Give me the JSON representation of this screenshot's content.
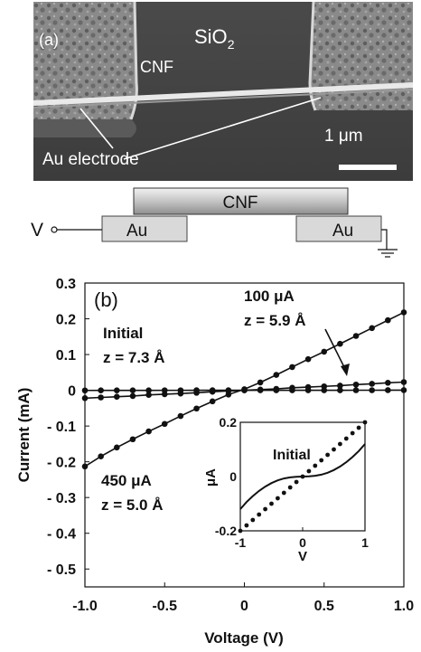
{
  "panel_a": {
    "label": "(a)",
    "sio2_text": "SiO",
    "sio2_sub": "2",
    "cnf_label": "CNF",
    "electrode_label": "Au electrode",
    "scale_label": "1 μm"
  },
  "schematic": {
    "cnf_label": "CNF",
    "left_electrode": "Au",
    "right_electrode": "Au",
    "voltage_label": "V"
  },
  "chart_data": [
    {
      "type": "line",
      "panel_label": "(b)",
      "xlabel": "Voltage (V)",
      "ylabel": "Current (mA)",
      "xlim": [
        -1.0,
        1.0
      ],
      "ylim": [
        -0.55,
        0.3
      ],
      "xticks": [
        "-1.0",
        "-0.5",
        "0",
        "0.5",
        "1.0"
      ],
      "yticks": [
        "0.3",
        "0.2",
        "0.1",
        "0",
        "- 0.1",
        "- 0.2",
        "- 0.3",
        "- 0.4",
        "- 0.5"
      ],
      "ytick_values": [
        0.3,
        0.2,
        0.1,
        0,
        -0.1,
        -0.2,
        -0.3,
        -0.4,
        -0.5
      ],
      "xtick_values": [
        -1.0,
        -0.5,
        0,
        0.5,
        1.0
      ],
      "annotations": [
        {
          "line1": "Initial",
          "line2": "z = 7.3 Å"
        },
        {
          "line1": "100 μA",
          "line2": "z = 5.9 Å"
        },
        {
          "line1": "450 μA",
          "line2": "z = 5.0 Å"
        }
      ],
      "series": [
        {
          "x": [
            -1.0,
            -0.9,
            -0.8,
            -0.7,
            -0.6,
            -0.5,
            -0.4,
            -0.3,
            -0.2,
            -0.1,
            0.0,
            0.1,
            0.2,
            0.3,
            0.4,
            0.5,
            0.6,
            0.7,
            0.8,
            0.9,
            1.0
          ],
          "y": [
            -0.213,
            -0.185,
            -0.16,
            -0.137,
            -0.115,
            -0.094,
            -0.072,
            -0.051,
            -0.031,
            -0.012,
            0.003,
            0.022,
            0.043,
            0.065,
            0.087,
            0.108,
            0.13,
            0.152,
            0.174,
            0.196,
            0.218
          ]
        },
        {
          "x": [
            -1.0,
            -0.9,
            -0.8,
            -0.7,
            -0.6,
            -0.5,
            -0.4,
            -0.3,
            -0.2,
            -0.1,
            0.0,
            0.1,
            0.2,
            0.3,
            0.4,
            0.5,
            0.6,
            0.7,
            0.8,
            0.9,
            1.0
          ],
          "y": [
            -0.022,
            -0.02,
            -0.018,
            -0.016,
            -0.013,
            -0.011,
            -0.009,
            -0.007,
            -0.004,
            -0.002,
            0.0,
            0.002,
            0.004,
            0.007,
            0.009,
            0.011,
            0.013,
            0.016,
            0.018,
            0.021,
            0.023
          ]
        },
        {
          "x": [
            -1.0,
            -0.9,
            -0.8,
            -0.7,
            -0.6,
            -0.5,
            -0.4,
            -0.3,
            -0.2,
            -0.1,
            0.0,
            0.1,
            0.2,
            0.3,
            0.4,
            0.5,
            0.6,
            0.7,
            0.8,
            0.9,
            1.0
          ],
          "y": [
            -0.0004,
            -0.0003,
            -0.00025,
            -0.0002,
            -0.00015,
            -0.0001,
            -7e-05,
            -4e-05,
            -2e-05,
            -1e-05,
            0.0,
            1e-05,
            2e-05,
            4e-05,
            7e-05,
            0.0001,
            0.00015,
            0.0002,
            0.00025,
            0.0003,
            0.0004
          ]
        }
      ]
    },
    {
      "type": "line",
      "inset": true,
      "title": "Initial",
      "xlabel": "V",
      "ylabel": "μA",
      "xlim": [
        -1,
        1
      ],
      "ylim": [
        -0.2,
        0.2
      ],
      "xticks": [
        "-1",
        "0",
        "1"
      ],
      "xtick_values": [
        -1,
        0,
        1
      ],
      "yticks": [
        "0.2",
        "0",
        "-0.2"
      ],
      "ytick_values": [
        0.2,
        0,
        -0.2
      ],
      "series": [
        {
          "style": "solid",
          "x": [
            -1.0,
            -0.9,
            -0.8,
            -0.7,
            -0.6,
            -0.5,
            -0.4,
            -0.3,
            -0.2,
            -0.1,
            0.0,
            0.1,
            0.2,
            0.3,
            0.4,
            0.5,
            0.6,
            0.7,
            0.8,
            0.9,
            1.0
          ],
          "y": [
            -0.12,
            -0.094,
            -0.072,
            -0.053,
            -0.037,
            -0.024,
            -0.014,
            -0.007,
            -0.003,
            -0.001,
            0.0,
            0.001,
            0.003,
            0.007,
            0.014,
            0.024,
            0.037,
            0.053,
            0.072,
            0.094,
            0.12
          ]
        },
        {
          "style": "dotted",
          "x": [
            -1.0,
            -0.9,
            -0.8,
            -0.7,
            -0.6,
            -0.5,
            -0.4,
            -0.3,
            -0.2,
            -0.1,
            0.0,
            0.1,
            0.2,
            0.3,
            0.4,
            0.5,
            0.6,
            0.7,
            0.8,
            0.9,
            1.0
          ],
          "y": [
            -0.2,
            -0.18,
            -0.16,
            -0.14,
            -0.12,
            -0.1,
            -0.08,
            -0.06,
            -0.04,
            -0.02,
            0.0,
            0.02,
            0.04,
            0.06,
            0.08,
            0.1,
            0.12,
            0.14,
            0.16,
            0.18,
            0.2
          ]
        }
      ]
    }
  ]
}
